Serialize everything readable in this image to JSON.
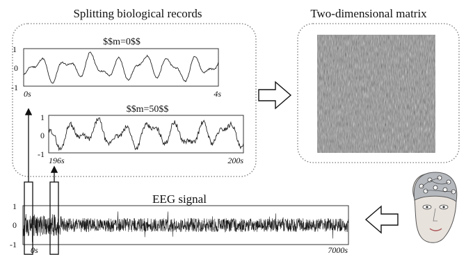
{
  "titles": {
    "splitting": "Splitting biological records",
    "matrix": "Two-dimensional matrix",
    "eeg": "EEG signal"
  },
  "segment_top": {
    "label": "$$m=0$$",
    "x_start": "0s",
    "x_end": "4s",
    "y_ticks": [
      "1",
      "0",
      "-1"
    ]
  },
  "segment_bottom": {
    "label": "$$m=50$$",
    "x_start": "196s",
    "x_end": "200s",
    "y_ticks": [
      "1",
      "0",
      "-1"
    ]
  },
  "eeg_plot": {
    "x_start": "0s",
    "x_end": "7000s",
    "y_ticks": [
      "1",
      "0",
      "-1"
    ]
  },
  "colors": {
    "panel_border": "#777777",
    "signal": "#222222",
    "matrix_base": "#8a8a8a"
  },
  "icons": [
    "hollow-right-arrow-icon",
    "hollow-left-arrow-icon",
    "eeg-head-cap-icon"
  ]
}
